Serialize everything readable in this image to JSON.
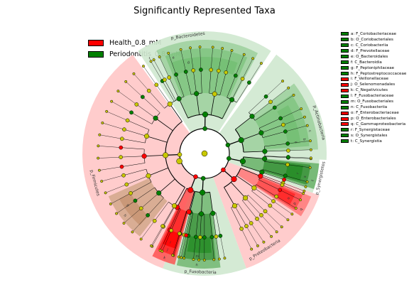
{
  "title": "Significantly Represented Taxa",
  "legend": [
    {
      "label": "Health_0.8_mM",
      "color": "#ff0000"
    },
    {
      "label": "Periodontitis_0.8_mM",
      "color": "#008000"
    }
  ],
  "colors": {
    "health": "#ff0000",
    "periodontitis": "#008000",
    "neutral_node": "#c8c800",
    "health_shade": "#ffcccc",
    "perio_shade": "#cfe8cf",
    "perio_shade_dark": "#6dbb6d",
    "brown_shade": "#d2a78a"
  },
  "clade_legend": [
    {
      "label": "a: F_Coriobacteriaceae",
      "group": "periodontitis"
    },
    {
      "label": "b: O_Coriobacteriales",
      "group": "periodontitis"
    },
    {
      "label": "c: C_Coriobacteriia",
      "group": "periodontitis"
    },
    {
      "label": "d: F_Prevotellaceae",
      "group": "periodontitis"
    },
    {
      "label": "e: O_Bacteroidales",
      "group": "periodontitis"
    },
    {
      "label": "f: C_Bacteroidia",
      "group": "periodontitis"
    },
    {
      "label": "g: F_Peptoniphilaceae",
      "group": "periodontitis"
    },
    {
      "label": "h: F_Peptostreptococcaceae",
      "group": "periodontitis"
    },
    {
      "label": "i: F_Veillonellaceae",
      "group": "health"
    },
    {
      "label": "j: O_Selenomonadales",
      "group": "health"
    },
    {
      "label": "k: C_Negativicutes",
      "group": "health"
    },
    {
      "label": "l: F_Fusobacteriaceae",
      "group": "periodontitis"
    },
    {
      "label": "m: O_Fusobacteriales",
      "group": "periodontitis"
    },
    {
      "label": "n: C_Fusobacteriia",
      "group": "periodontitis"
    },
    {
      "label": "o: F_Enterobacteriaceae",
      "group": "health"
    },
    {
      "label": "p: O_Enterobacteriales",
      "group": "health"
    },
    {
      "label": "q: C_Gammaproteobacteria",
      "group": "health"
    },
    {
      "label": "r: F_Synergistaceae",
      "group": "periodontitis"
    },
    {
      "label": "s: O_Synergistales",
      "group": "periodontitis"
    },
    {
      "label": "t: C_Synergistia",
      "group": "periodontitis"
    }
  ],
  "phylum_labels": {
    "bacteroidetes": "p_Bacteroidetes",
    "actinobacteria": "p_Actinobacteria",
    "synergistetes": "p_Synergistetes",
    "proteobacteria": "p_Proteobacteria",
    "fusobacteria": "p_Fusobacteria",
    "firmicutes": "p_Firmicutes"
  },
  "sector_letters": {
    "f": "f",
    "e": "e",
    "d": "d",
    "c": "c",
    "b": "b",
    "a": "a",
    "t": "t",
    "s": "s",
    "r": "r",
    "q": "q",
    "p": "p",
    "o": "o",
    "n": "n",
    "m": "m",
    "l": "l",
    "k": "k",
    "j": "j",
    "i": "i",
    "h": "h",
    "g": "g"
  }
}
